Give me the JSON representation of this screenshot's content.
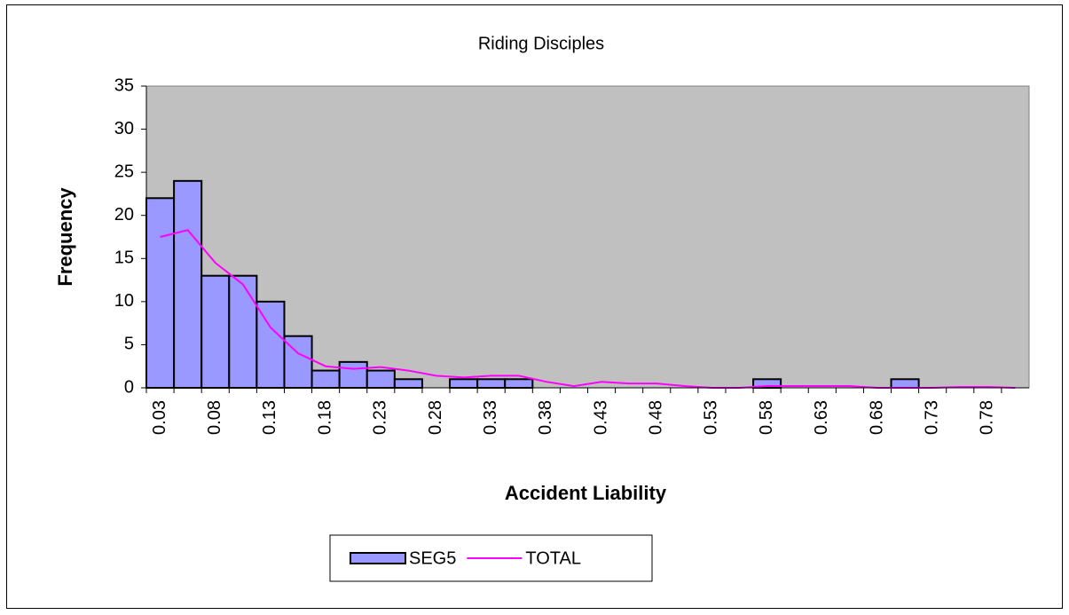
{
  "chart_data": {
    "type": "bar",
    "title": "Riding Disciples",
    "x_label": "Accident Liability",
    "y_label": "Frequency",
    "categories": [
      "0.03",
      null,
      "0.08",
      null,
      "0.13",
      null,
      "0.18",
      null,
      "0.23",
      null,
      "0.28",
      null,
      "0.33",
      null,
      "0.38",
      null,
      "0.43",
      null,
      "0.48",
      null,
      "0.53",
      null,
      "0.58",
      null,
      "0.63",
      null,
      "0.68",
      null,
      "0.73",
      null,
      "0.78",
      null
    ],
    "series": [
      {
        "name": "SEG5",
        "type": "bar",
        "color": "#9999ff",
        "values": [
          22,
          24,
          13,
          13,
          10,
          6,
          2,
          3,
          2,
          1,
          0,
          1,
          1,
          1,
          0,
          0,
          0,
          0,
          0,
          0,
          0,
          0,
          1,
          0,
          0,
          0,
          0,
          1,
          0,
          0,
          0,
          0
        ]
      },
      {
        "name": "TOTAL",
        "type": "line",
        "color": "#ff00ff",
        "values": [
          17.5,
          18.3,
          14.5,
          12,
          7,
          4,
          2.5,
          2.2,
          2.4,
          2,
          1.4,
          1.2,
          1.4,
          1.4,
          0.7,
          0.2,
          0.7,
          0.5,
          0.5,
          0.2,
          0,
          0,
          0.2,
          0.2,
          0.2,
          0.2,
          0,
          0,
          0,
          0.1,
          0.1,
          0
        ]
      }
    ],
    "ylim": [
      0,
      35
    ],
    "yticks": [
      0,
      5,
      10,
      15,
      20,
      25,
      30,
      35
    ],
    "plot_background": "#c0c0c0",
    "legend": "bottom"
  }
}
